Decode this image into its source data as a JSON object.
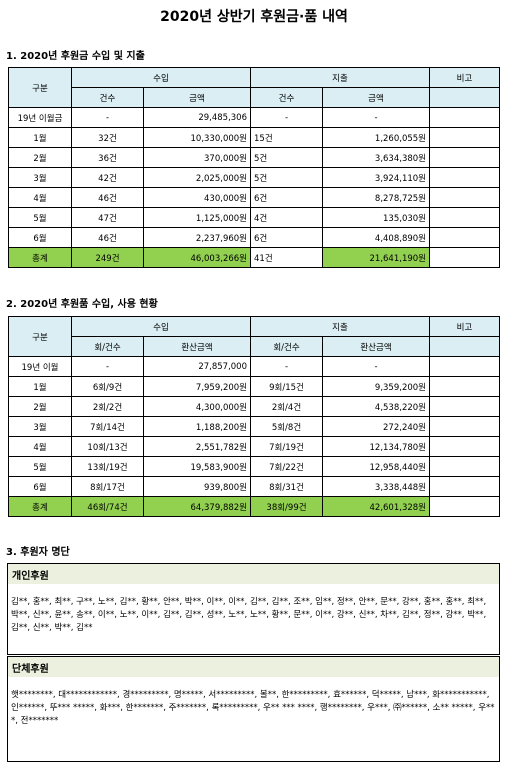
{
  "title": "2020년 상반기 후원금·품 내역",
  "section1": {
    "heading": "1. 2020년 후원금 수입 및 지출",
    "headers": {
      "category": "구분",
      "income": "수입",
      "expense": "지출",
      "note": "비고",
      "count": "건수",
      "amount": "금액"
    },
    "rows": [
      {
        "label": "19년 이월금",
        "in_count": "-",
        "in_amount": "29,485,306",
        "out_count": "-",
        "out_amount": "-"
      },
      {
        "label": "1월",
        "in_count": "32건",
        "in_amount": "10,330,000원",
        "out_count": "15건",
        "out_amount": "1,260,055원"
      },
      {
        "label": "2월",
        "in_count": "36건",
        "in_amount": "370,000원",
        "out_count": "5건",
        "out_amount": "3,634,380원"
      },
      {
        "label": "3월",
        "in_count": "42건",
        "in_amount": "2,025,000원",
        "out_count": "5건",
        "out_amount": "3,924,110원"
      },
      {
        "label": "4월",
        "in_count": "46건",
        "in_amount": "430,000원",
        "out_count": "6건",
        "out_amount": "8,278,725원"
      },
      {
        "label": "5월",
        "in_count": "47건",
        "in_amount": "1,125,000원",
        "out_count": "4건",
        "out_amount": "135,030원"
      },
      {
        "label": "6월",
        "in_count": "46건",
        "in_amount": "2,237,960원",
        "out_count": "6건",
        "out_amount": "4,408,890원"
      }
    ],
    "total": {
      "label": "총계",
      "in_count": "249건",
      "in_amount": "46,003,266원",
      "out_count": "41건",
      "out_amount": "21,641,190원"
    }
  },
  "section2": {
    "heading": "2. 2020년 후원품 수입, 사용 현황",
    "headers": {
      "category": "구분",
      "income": "수입",
      "expense": "지출",
      "note": "비고",
      "count": "회/건수",
      "amount": "환산금액"
    },
    "rows": [
      {
        "label": "19년 이월",
        "in_count": "-",
        "in_amount": "27,857,000",
        "out_count": "-",
        "out_amount": "-"
      },
      {
        "label": "1월",
        "in_count": "6회/9건",
        "in_amount": "7,959,200원",
        "out_count": "9회/15건",
        "out_amount": "9,359,200원"
      },
      {
        "label": "2월",
        "in_count": "2회/2건",
        "in_amount": "4,300,000원",
        "out_count": "2회/4건",
        "out_amount": "4,538,220원"
      },
      {
        "label": "3월",
        "in_count": "7회/14건",
        "in_amount": "1,188,200원",
        "out_count": "5회/8건",
        "out_amount": "272,240원"
      },
      {
        "label": "4월",
        "in_count": "10회/13건",
        "in_amount": "2,551,782원",
        "out_count": "7회/19건",
        "out_amount": "12,134,780원"
      },
      {
        "label": "5월",
        "in_count": "13회/19건",
        "in_amount": "19,583,900원",
        "out_count": "7회/22건",
        "out_amount": "12,958,440원"
      },
      {
        "label": "6월",
        "in_count": "8회/17건",
        "in_amount": "939,800원",
        "out_count": "8회/31건",
        "out_amount": "3,338,448원"
      }
    ],
    "total": {
      "label": "총계",
      "in_count": "46회/74건",
      "in_amount": "64,379,882원",
      "out_count": "38회/99건",
      "out_amount": "42,601,328원"
    }
  },
  "section3": {
    "heading": "3. 후원자 명단",
    "individual_title": "개인후원",
    "individual_names": "김**, 홍**, 최**, 구**, 노**, 김**, 황**, 안**, 박**, 이**, 이**, 김**, 김**, 조**, 임**, 정**, 안**, 문**, 강**, 홍**, 홍**, 최**, 박**, 신**, 윤**, 송**, 이**, 노**, 이**, 김**, 김**, 성**, 노**, 노**, 황**, 문**, 이**, 강**, 신**, 차**, 김**, 정**, 강**, 박**, 김**, 신**, 박**, 김**",
    "group_title": "단체후원",
    "group_names": "햇********, 대************, 경*********, 명*****, 서*********, 볼**, 한*********, 효******, 덕*****, 남***, 화***********, 인******, 뚜*** *****, 화***, 한*******, 주*******, 록*********, 우** *** ****, 행********, 우***, ㈜******, 소** *****, 우***, 전*******"
  }
}
